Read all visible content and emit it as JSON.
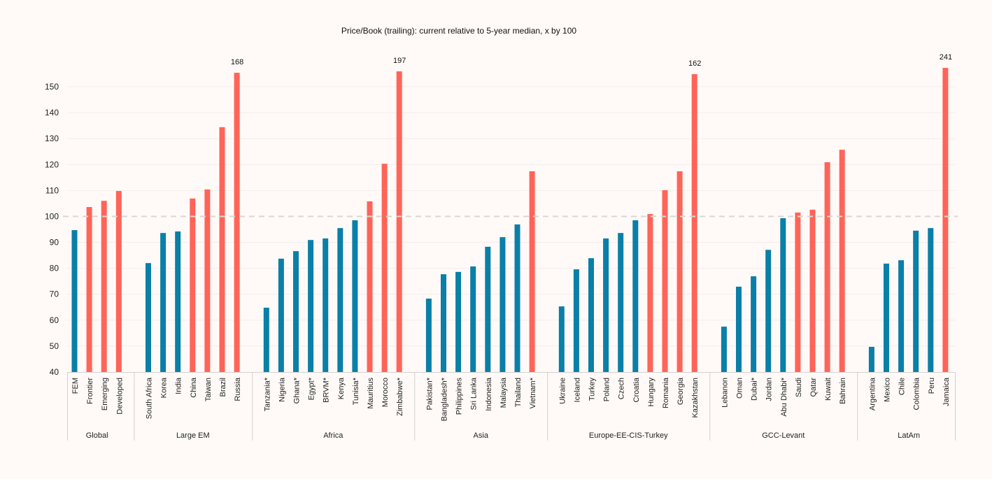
{
  "chart_data": {
    "type": "bar",
    "title": "Price/Book (trailing):  current  relative  to 5-year  median,  x by 100",
    "xlabel": "",
    "ylabel": "",
    "ylim": [
      40,
      157
    ],
    "yticks": [
      40,
      50,
      60,
      70,
      80,
      90,
      100,
      110,
      120,
      130,
      140,
      150
    ],
    "reference_line": 100,
    "grid": true,
    "colors": {
      "below": "#0a7fa8",
      "above": "#ff6459",
      "reference": "#d9d6d4",
      "grid": "#f2eeec",
      "axis": "#d4d0ce"
    },
    "groups": [
      {
        "name": "Global",
        "items": [
          {
            "label": "FEM",
            "value": 94.7
          },
          {
            "label": "Frontier",
            "value": 103.6
          },
          {
            "label": "Emerging",
            "value": 106
          },
          {
            "label": "Developed",
            "value": 109.8
          }
        ]
      },
      {
        "name": "Large EM",
        "items": [
          {
            "label": "South Africa",
            "value": 82
          },
          {
            "label": "Korea",
            "value": 93.6
          },
          {
            "label": "India",
            "value": 94.2
          },
          {
            "label": "China",
            "value": 106.9
          },
          {
            "label": "Taiwan",
            "value": 110.4
          },
          {
            "label": "Brazil",
            "value": 134.4
          },
          {
            "label": "Russia",
            "value": 168,
            "label_text": "168"
          }
        ]
      },
      {
        "name": "Africa",
        "items": [
          {
            "label": "Tanzania*",
            "value": 64.8
          },
          {
            "label": "Nigeria",
            "value": 83.7
          },
          {
            "label": "Ghana*",
            "value": 86.6
          },
          {
            "label": "Egypt*",
            "value": 90.9
          },
          {
            "label": "BRVM*",
            "value": 91.5
          },
          {
            "label": "Kenya",
            "value": 95.5
          },
          {
            "label": "Tunisia*",
            "value": 98.5
          },
          {
            "label": "Mauritius",
            "value": 105.8
          },
          {
            "label": "Morocco",
            "value": 120.3
          },
          {
            "label": "Zimbabwe*",
            "value": 197,
            "label_text": "197"
          }
        ]
      },
      {
        "name": "Asia",
        "items": [
          {
            "label": "Pakistan*",
            "value": 68.3
          },
          {
            "label": "Bangladesh*",
            "value": 77.7
          },
          {
            "label": "Philippines",
            "value": 78.6
          },
          {
            "label": "Sri Lanka",
            "value": 80.7
          },
          {
            "label": "Indonesia",
            "value": 88.3
          },
          {
            "label": "Malaysia",
            "value": 92
          },
          {
            "label": "Thailand",
            "value": 96.9
          },
          {
            "label": "Vietnam*",
            "value": 117.4
          }
        ]
      },
      {
        "name": "Europe-EE-CIS-Turkey",
        "items": [
          {
            "label": "Ukraine",
            "value": 65.3
          },
          {
            "label": "Iceland",
            "value": 79.6
          },
          {
            "label": "Turkey",
            "value": 83.9
          },
          {
            "label": "Poland",
            "value": 91.5
          },
          {
            "label": "Czech",
            "value": 93.6
          },
          {
            "label": "Croatia",
            "value": 98.5
          },
          {
            "label": "Hungary",
            "value": 100.9
          },
          {
            "label": "Romania",
            "value": 110.1
          },
          {
            "label": "Georgia",
            "value": 117.4
          },
          {
            "label": "Kazakhstan",
            "value": 162,
            "label_text": "162"
          }
        ]
      },
      {
        "name": "GCC-Levant",
        "items": [
          {
            "label": "Lebanon",
            "value": 57.5
          },
          {
            "label": "Oman",
            "value": 72.9
          },
          {
            "label": "Dubai*",
            "value": 76.9
          },
          {
            "label": "Jordan",
            "value": 87.1
          },
          {
            "label": "Abu Dhabi*",
            "value": 99.3
          },
          {
            "label": "Saudi",
            "value": 101.5
          },
          {
            "label": "Qatar",
            "value": 102.6
          },
          {
            "label": "Kuwait",
            "value": 120.9
          },
          {
            "label": "Bahrain",
            "value": 125.7
          }
        ]
      },
      {
        "name": "LatAm",
        "items": [
          {
            "label": "Argentina",
            "value": 49.7
          },
          {
            "label": "Mexico",
            "value": 81.8
          },
          {
            "label": "Chile",
            "value": 83.1
          },
          {
            "label": "Colombia",
            "value": 94.5
          },
          {
            "label": "Peru",
            "value": 95.5
          },
          {
            "label": "Jamaica",
            "value": 241,
            "label_text": "241"
          }
        ]
      }
    ]
  }
}
